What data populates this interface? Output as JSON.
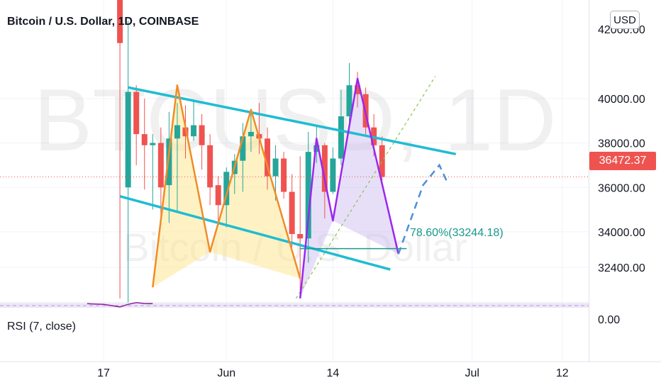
{
  "header": {
    "title": "Bitcoin / U.S. Dollar, 1D, COINBASE",
    "currency_button": "USD"
  },
  "watermark": {
    "symbol": "BTCUSD, 1D",
    "name": "Bitcoin / U.S. Dollar"
  },
  "indicator": {
    "rsi_label": "RSI (7, close)",
    "rsi_axis_label": "0.00"
  },
  "last_price": {
    "label": "36472.37",
    "value": 36472.37
  },
  "fib_label": "78.60%(33244.18)",
  "colors": {
    "up": "#26a69a",
    "down": "#ef5350",
    "channel": "#1fbcd2",
    "orange_pattern": "#f08c28",
    "purple_pattern": "#9b27ef",
    "projection": "#4a90d9",
    "fib_line": "#1a9a8c",
    "dotted_trend": "#8bc34a",
    "rsi_line": "#8e1f9e"
  },
  "chart_data": {
    "type": "candlestick",
    "title": "Bitcoin / U.S. Dollar, 1D, COINBASE",
    "y_ticks": [
      "40000.00",
      "38000.00",
      "36000.00",
      "34000.00",
      "32400.00"
    ],
    "y_tick_values": [
      40000,
      38000,
      36000,
      34000,
      32400
    ],
    "ylim": [
      30700,
      43550
    ],
    "x_ticks": [
      "17",
      "Jun",
      "14",
      "Jul",
      "12"
    ],
    "x_tick_days": [
      0,
      15,
      28,
      45,
      56
    ],
    "candles": [
      {
        "d": 2,
        "o": 47000,
        "h": 51000,
        "l": 31000,
        "c": 42500
      },
      {
        "d": 3,
        "o": 36000,
        "h": 43500,
        "l": 30500,
        "c": 40300
      },
      {
        "d": 4,
        "o": 40300,
        "h": 40600,
        "l": 37000,
        "c": 38400
      },
      {
        "d": 5,
        "o": 38400,
        "h": 40000,
        "l": 35900,
        "c": 37900
      },
      {
        "d": 6,
        "o": 37900,
        "h": 38400,
        "l": 35000,
        "c": 38000
      },
      {
        "d": 7,
        "o": 38000,
        "h": 38700,
        "l": 34300,
        "c": 36000
      },
      {
        "d": 8,
        "o": 36100,
        "h": 39400,
        "l": 34400,
        "c": 38200
      },
      {
        "d": 9,
        "o": 38200,
        "h": 39800,
        "l": 34900,
        "c": 38800
      },
      {
        "d": 10,
        "o": 38700,
        "h": 39700,
        "l": 37300,
        "c": 38300
      },
      {
        "d": 11,
        "o": 38300,
        "h": 39900,
        "l": 38100,
        "c": 38800
      },
      {
        "d": 12,
        "o": 38800,
        "h": 39300,
        "l": 36800,
        "c": 37900
      },
      {
        "d": 13,
        "o": 37900,
        "h": 38400,
        "l": 35200,
        "c": 36000
      },
      {
        "d": 14,
        "o": 36100,
        "h": 36500,
        "l": 34300,
        "c": 35200
      },
      {
        "d": 15,
        "o": 35200,
        "h": 36900,
        "l": 34200,
        "c": 36700
      },
      {
        "d": 16,
        "o": 36600,
        "h": 37500,
        "l": 35700,
        "c": 37200
      },
      {
        "d": 17,
        "o": 37200,
        "h": 38900,
        "l": 35800,
        "c": 38300
      },
      {
        "d": 18,
        "o": 38300,
        "h": 39400,
        "l": 37600,
        "c": 38500
      },
      {
        "d": 19,
        "o": 38400,
        "h": 39800,
        "l": 37500,
        "c": 38200
      },
      {
        "d": 20,
        "o": 38200,
        "h": 38700,
        "l": 35900,
        "c": 36500
      },
      {
        "d": 21,
        "o": 36500,
        "h": 37900,
        "l": 35400,
        "c": 37300
      },
      {
        "d": 22,
        "o": 37300,
        "h": 37600,
        "l": 35500,
        "c": 35800
      },
      {
        "d": 23,
        "o": 35800,
        "h": 36600,
        "l": 33300,
        "c": 33900
      },
      {
        "d": 24,
        "o": 33900,
        "h": 37400,
        "l": 31000,
        "c": 33700
      },
      {
        "d": 25,
        "o": 33700,
        "h": 38500,
        "l": 32600,
        "c": 37600
      },
      {
        "d": 26,
        "o": 37600,
        "h": 38800,
        "l": 37100,
        "c": 37900
      },
      {
        "d": 27,
        "o": 37900,
        "h": 38000,
        "l": 34600,
        "c": 35800
      },
      {
        "d": 28,
        "o": 35800,
        "h": 37800,
        "l": 35700,
        "c": 37300
      },
      {
        "d": 29,
        "o": 37300,
        "h": 40400,
        "l": 37000,
        "c": 39200
      },
      {
        "d": 30,
        "o": 39200,
        "h": 41600,
        "l": 38700,
        "c": 40600
      },
      {
        "d": 31,
        "o": 40600,
        "h": 41200,
        "l": 39600,
        "c": 40200
      },
      {
        "d": 32,
        "o": 40200,
        "h": 40500,
        "l": 38300,
        "c": 38700
      },
      {
        "d": 33,
        "o": 38700,
        "h": 39300,
        "l": 37400,
        "c": 37900
      },
      {
        "d": 34,
        "o": 37900,
        "h": 38300,
        "l": 36300,
        "c": 36470
      }
    ],
    "channel_upper": [
      [
        3,
        40500
      ],
      [
        43,
        37500
      ]
    ],
    "channel_lower": [
      [
        2,
        35600
      ],
      [
        35,
        32300
      ]
    ],
    "orange_pattern": [
      [
        6,
        31500
      ],
      [
        9,
        40600
      ],
      [
        13,
        33100
      ],
      [
        18,
        39500
      ],
      [
        24,
        31900
      ]
    ],
    "purple_pattern": [
      [
        24,
        31000
      ],
      [
        26,
        38200
      ],
      [
        28,
        34500
      ],
      [
        31,
        40900
      ],
      [
        36,
        33000
      ]
    ],
    "fib_level": {
      "value": 33244.18,
      "from_day": 24,
      "to_day": 37
    },
    "projection": [
      [
        36,
        33000
      ],
      [
        39,
        36100
      ],
      [
        41,
        37000
      ],
      [
        42,
        36200
      ]
    ],
    "dotted_trend": [
      [
        23.5,
        31000
      ],
      [
        40.5,
        41000
      ]
    ],
    "rsi_series": [
      {
        "d": -2,
        "v": 0.45
      },
      {
        "d": 0,
        "v": 0.3
      },
      {
        "d": 1,
        "v": 0.0
      },
      {
        "d": 2,
        "v": -0.3
      },
      {
        "d": 3,
        "v": 0.3
      },
      {
        "d": 4,
        "v": 0.7
      },
      {
        "d": 5,
        "v": 0.5
      },
      {
        "d": 6,
        "v": 0.45
      }
    ]
  }
}
